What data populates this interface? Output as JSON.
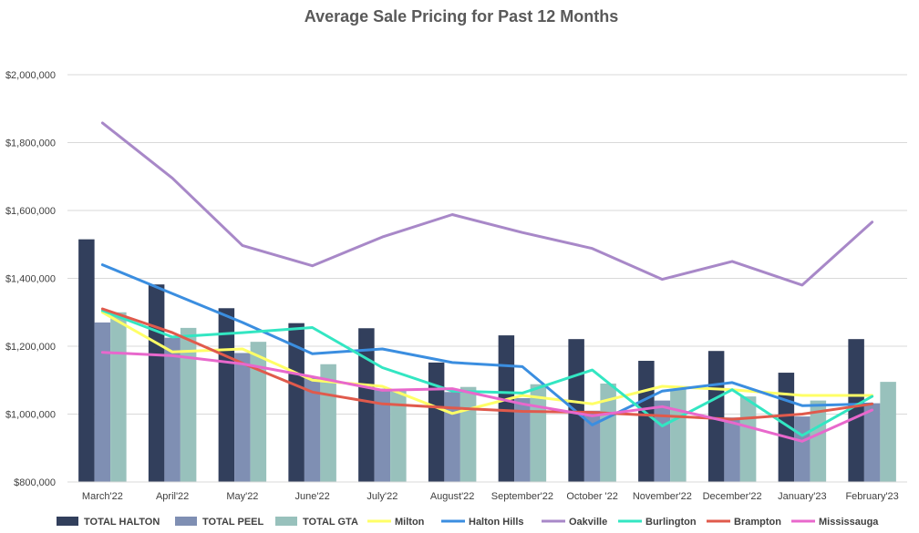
{
  "chart_data": {
    "type": "bar+line",
    "title": "Average Sale Pricing for Past 12 Months",
    "xlabel": "",
    "ylabel": "",
    "ylim": [
      800000,
      2000000
    ],
    "yticks": [
      800000,
      1000000,
      1200000,
      1400000,
      1600000,
      1800000,
      2000000
    ],
    "ytick_labels": [
      "$800,000",
      "$1,000,000",
      "$1,200,000",
      "$1,400,000",
      "$1,600,000",
      "$1,800,000",
      "$2,000,000"
    ],
    "grid": true,
    "legend_position": "bottom",
    "categories": [
      "March'22",
      "April'22",
      "May'22",
      "June'22",
      "July'22",
      "August'22",
      "September'22",
      "October '22",
      "November'22",
      "December'22",
      "January'23",
      "February'23"
    ],
    "bar_series": [
      {
        "name": "TOTAL HALTON",
        "color": "#323f5c",
        "values": [
          1515000,
          1382000,
          1312000,
          1268000,
          1253000,
          1152000,
          1232000,
          1221000,
          1157000,
          1186000,
          1122000,
          1221000
        ]
      },
      {
        "name": "TOTAL PEEL",
        "color": "#7f8fb3",
        "values": [
          1270000,
          1225000,
          1180000,
          1110000,
          1075000,
          1065000,
          1047000,
          1010000,
          1040000,
          990000,
          993000,
          1032000
        ]
      },
      {
        "name": "TOTAL GTA",
        "color": "#98c1bc",
        "values": [
          1300000,
          1254000,
          1213000,
          1147000,
          1071000,
          1080000,
          1088000,
          1090000,
          1074000,
          1052000,
          1040000,
          1095000
        ]
      }
    ],
    "line_series": [
      {
        "name": "Milton",
        "color": "#ffff66",
        "values": [
          1300000,
          1183000,
          1192000,
          1100000,
          1082000,
          1002000,
          1055000,
          1030000,
          1082000,
          1072000,
          1055000,
          1055000
        ]
      },
      {
        "name": "Halton Hills",
        "color": "#3b8ee0",
        "values": [
          1440000,
          1355000,
          1270000,
          1178000,
          1192000,
          1152000,
          1140000,
          968000,
          1068000,
          1093000,
          1025000,
          1030000
        ]
      },
      {
        "name": "Oakville",
        "color": "#a888c8",
        "values": [
          1858000,
          1695000,
          1497000,
          1437000,
          1522000,
          1588000,
          1535000,
          1488000,
          1397000,
          1450000,
          1380000,
          1566000
        ]
      },
      {
        "name": "Burlington",
        "color": "#33e6c2",
        "values": [
          1305000,
          1227000,
          1240000,
          1255000,
          1137000,
          1068000,
          1062000,
          1130000,
          965000,
          1072000,
          937000,
          1052000
        ]
      },
      {
        "name": "Brampton",
        "color": "#e05a4c",
        "values": [
          1310000,
          1240000,
          1150000,
          1065000,
          1030000,
          1018000,
          1008000,
          1005000,
          995000,
          985000,
          1000000,
          1030000
        ]
      },
      {
        "name": "Mississauga",
        "color": "#e868cc",
        "values": [
          1182000,
          1172000,
          1148000,
          1110000,
          1070000,
          1075000,
          1030000,
          995000,
          1022000,
          975000,
          920000,
          1012000
        ]
      }
    ]
  }
}
